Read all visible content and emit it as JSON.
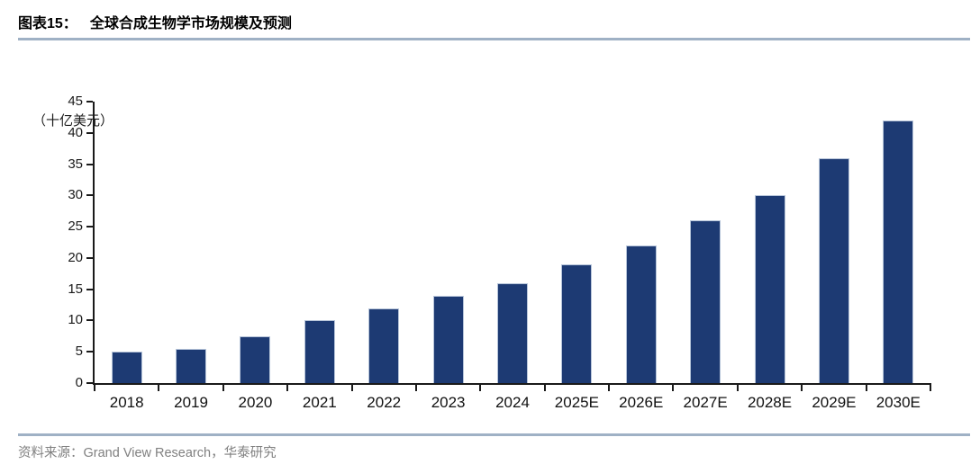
{
  "header": {
    "figure_label": "图表15：",
    "figure_title": "全球合成生物学市场规模及预测"
  },
  "chart_data": {
    "type": "bar",
    "title": "全球合成生物学市场规模及预测",
    "xlabel": "",
    "ylabel": "（十亿美元）",
    "categories": [
      "2018",
      "2019",
      "2020",
      "2021",
      "2022",
      "2023",
      "2024",
      "2025E",
      "2026E",
      "2027E",
      "2028E",
      "2029E",
      "2030E"
    ],
    "values": [
      5,
      5.5,
      7.5,
      10,
      12,
      14,
      16,
      19,
      22,
      26,
      30,
      36,
      42
    ],
    "ylim": [
      0,
      45
    ],
    "ytick_step": 5,
    "grid": false,
    "legend": "none",
    "bar_color": "#1d3a73"
  },
  "footer": {
    "source_text": "资料来源：Grand View Research，华泰研究"
  },
  "colors": {
    "bar": "#1d3a73",
    "bar_edge": "#b6c4d9",
    "rule": "#9fb1c5",
    "axis": "#1a1a1a",
    "source_text": "#808080"
  }
}
